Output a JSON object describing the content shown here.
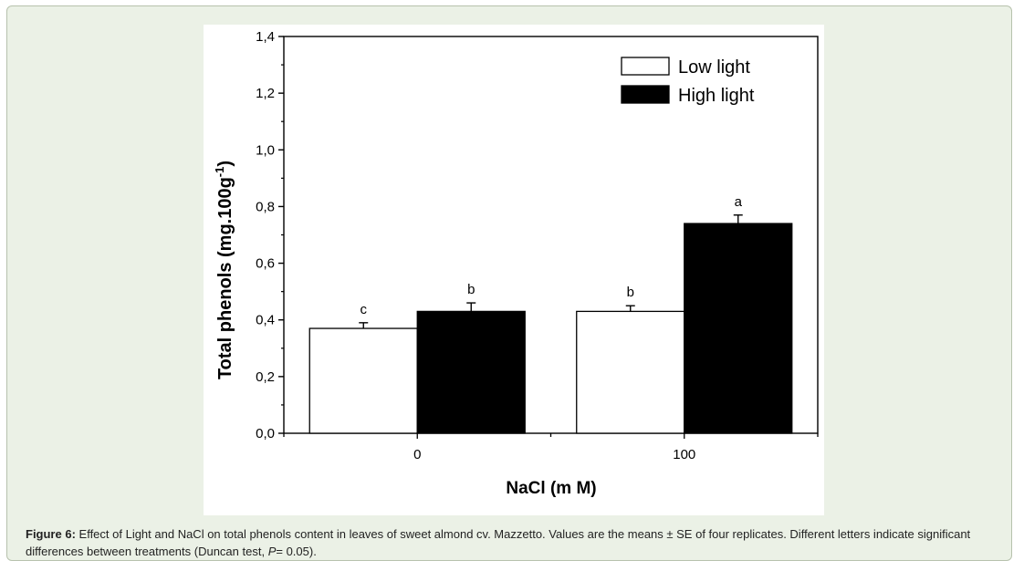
{
  "chart_data": {
    "type": "bar",
    "categories": [
      "0",
      "100"
    ],
    "series": [
      {
        "name": "Low light",
        "values": [
          0.37,
          0.43
        ],
        "errors": [
          0.02,
          0.02
        ],
        "letters": [
          "c",
          "b"
        ],
        "color": "#ffffff"
      },
      {
        "name": "High light",
        "values": [
          0.43,
          0.74
        ],
        "errors": [
          0.03,
          0.03
        ],
        "letters": [
          "b",
          "a"
        ],
        "color": "#000000"
      }
    ],
    "xlabel": "NaCl (m M)",
    "ylabel": "Total phenols (mg.100g",
    "ylabel_sup": "-1",
    "ylabel_end": ")",
    "ylim": [
      0,
      1.4
    ],
    "yticks": [
      "0,0",
      "0,2",
      "0,4",
      "0,6",
      "0,8",
      "1,0",
      "1,2",
      "1,4"
    ],
    "legend_position": "top-right",
    "grid": false
  },
  "caption": {
    "label": "Figure 6:",
    "text": " Effect of Light and NaCl on total phenols content in leaves of sweet almond cv. Mazzetto. Values are the means ± SE of four replicates. Different letters indicate significant differences between treatments (Duncan test, ",
    "p_symbol": "P",
    "p_value": "= 0.05)."
  },
  "colors": {
    "panel_bg": "#ebf1e6",
    "panel_border": "#b7c2ad",
    "bar_low": "#ffffff",
    "bar_high": "#000000"
  }
}
